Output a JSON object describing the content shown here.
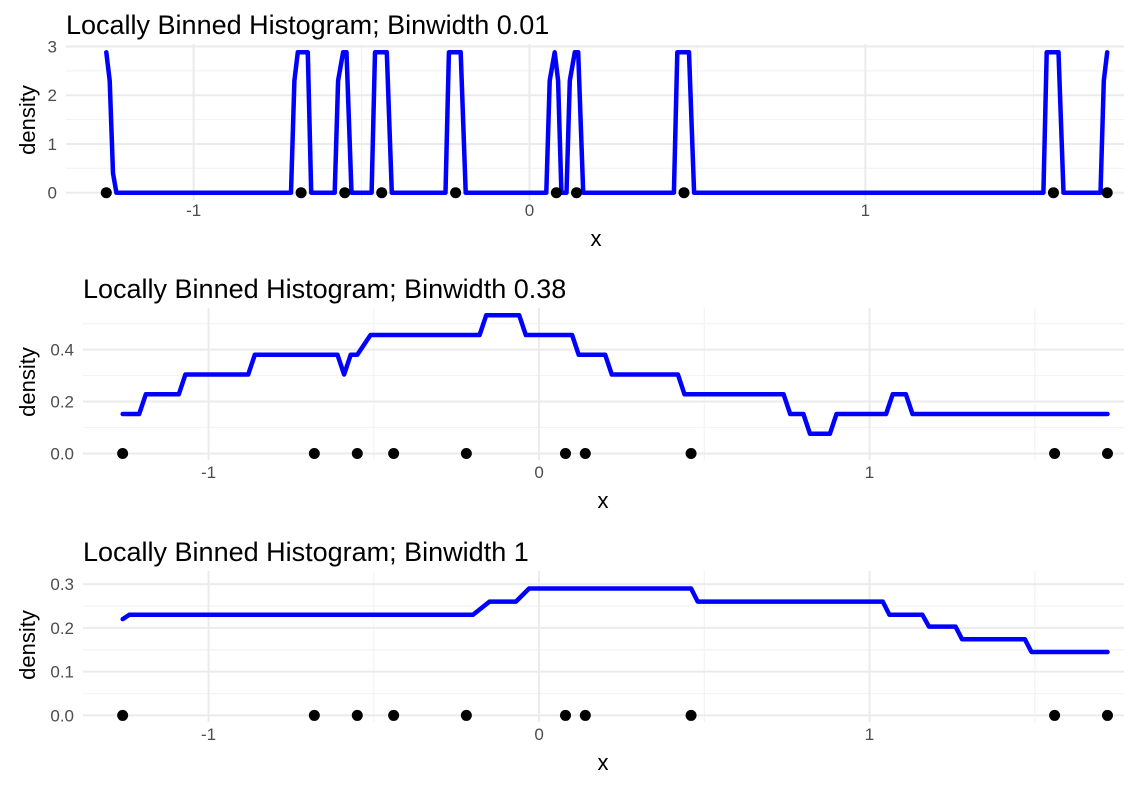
{
  "colors": {
    "line": "#0000ff",
    "point": "#000000"
  },
  "chart_data": [
    {
      "type": "line",
      "title": "Locally Binned Histogram; Binwidth 0.01",
      "xlabel": "x",
      "ylabel": "density",
      "xlim": [
        -1.38,
        1.77
      ],
      "ylim": [
        -0.15,
        3.05
      ],
      "xticks": [
        -1,
        0,
        1
      ],
      "xtick_labels": [
        "-1",
        "0",
        "1"
      ],
      "yticks": [
        0,
        1,
        2,
        3
      ],
      "ytick_labels": [
        "0",
        "1",
        "2",
        "3"
      ],
      "grid": true,
      "points": [
        -1.26,
        -0.68,
        -0.55,
        -0.44,
        -0.22,
        0.08,
        0.14,
        0.46,
        1.56,
        1.72
      ],
      "series": [
        {
          "x": [
            -1.26,
            -1.25,
            -1.24,
            -1.23,
            -0.71,
            -0.7,
            -0.69,
            -0.66,
            -0.65,
            -0.58,
            -0.57,
            -0.555,
            -0.545,
            -0.53,
            -0.47,
            -0.46,
            -0.425,
            -0.41,
            -0.25,
            -0.24,
            -0.205,
            -0.19,
            0.05,
            0.06,
            0.075,
            0.085,
            0.095,
            0.11,
            0.12,
            0.135,
            0.145,
            0.16,
            0.43,
            0.44,
            0.475,
            0.49,
            1.53,
            1.54,
            1.575,
            1.59,
            1.7,
            1.71,
            1.72
          ],
          "y": [
            2.88,
            2.3,
            0.4,
            0,
            0,
            2.3,
            2.88,
            2.88,
            0,
            0,
            2.3,
            2.88,
            2.88,
            0,
            0,
            2.88,
            2.88,
            0,
            0,
            2.88,
            2.88,
            0,
            0,
            2.3,
            2.88,
            2.3,
            0,
            0,
            2.3,
            2.88,
            2.88,
            0,
            0,
            2.88,
            2.88,
            0,
            0,
            2.88,
            2.88,
            0,
            0,
            2.3,
            2.88
          ]
        }
      ]
    },
    {
      "type": "line",
      "title": "Locally Binned Histogram; Binwidth 0.38",
      "xlabel": "x",
      "ylabel": "density",
      "xlim": [
        -1.38,
        1.77
      ],
      "ylim": [
        -0.025,
        0.56
      ],
      "xticks": [
        -1,
        0,
        1
      ],
      "xtick_labels": [
        "-1",
        "0",
        "1"
      ],
      "yticks": [
        0,
        0.2,
        0.4
      ],
      "ytick_labels": [
        "0.0",
        "0.2",
        "0.4"
      ],
      "grid": true,
      "points": [
        -1.26,
        -0.68,
        -0.55,
        -0.44,
        -0.22,
        0.08,
        0.14,
        0.46,
        1.56,
        1.72
      ],
      "series": [
        {
          "x": [
            -1.26,
            -1.21,
            -1.19,
            -1.09,
            -1.07,
            -0.88,
            -0.86,
            -0.61,
            -0.59,
            -0.57,
            -0.55,
            -0.51,
            -0.49,
            -0.18,
            -0.16,
            -0.06,
            -0.04,
            0.1,
            0.12,
            0.2,
            0.22,
            0.42,
            0.44,
            0.74,
            0.76,
            0.8,
            0.82,
            0.88,
            0.9,
            1.05,
            1.07,
            1.11,
            1.13,
            1.72
          ],
          "y": [
            0.152,
            0.152,
            0.228,
            0.228,
            0.304,
            0.304,
            0.38,
            0.38,
            0.304,
            0.38,
            0.38,
            0.456,
            0.456,
            0.456,
            0.532,
            0.532,
            0.456,
            0.456,
            0.38,
            0.38,
            0.304,
            0.304,
            0.228,
            0.228,
            0.152,
            0.152,
            0.076,
            0.076,
            0.152,
            0.152,
            0.228,
            0.228,
            0.152,
            0.152
          ]
        }
      ]
    },
    {
      "type": "line",
      "title": "Locally Binned Histogram; Binwidth 1",
      "xlabel": "x",
      "ylabel": "density",
      "xlim": [
        -1.38,
        1.77
      ],
      "ylim": [
        -0.015,
        0.33
      ],
      "xticks": [
        -1,
        0,
        1
      ],
      "xtick_labels": [
        "-1",
        "0",
        "1"
      ],
      "yticks": [
        0,
        0.1,
        0.2,
        0.3
      ],
      "ytick_labels": [
        "0.0",
        "0.1",
        "0.2",
        "0.3"
      ],
      "grid": true,
      "points": [
        -1.26,
        -0.68,
        -0.55,
        -0.44,
        -0.22,
        0.08,
        0.14,
        0.46,
        1.56,
        1.72
      ],
      "series": [
        {
          "x": [
            -1.26,
            -1.24,
            -0.2,
            -0.15,
            -0.07,
            -0.03,
            0.46,
            0.48,
            1.04,
            1.06,
            1.16,
            1.18,
            1.26,
            1.28,
            1.47,
            1.49,
            1.72
          ],
          "y": [
            0.22,
            0.23,
            0.23,
            0.26,
            0.26,
            0.29,
            0.29,
            0.26,
            0.26,
            0.23,
            0.23,
            0.203,
            0.203,
            0.174,
            0.174,
            0.145,
            0.145
          ]
        }
      ]
    }
  ]
}
